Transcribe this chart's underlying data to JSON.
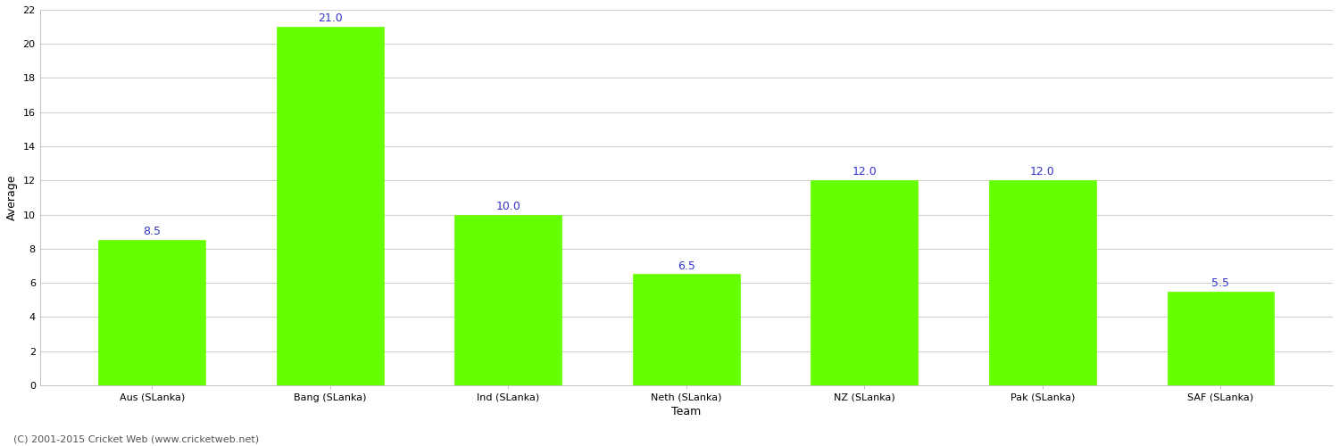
{
  "categories": [
    "Aus (SLanka)",
    "Bang (SLanka)",
    "Ind (SLanka)",
    "Neth (SLanka)",
    "NZ (SLanka)",
    "Pak (SLanka)",
    "SAF (SLanka)"
  ],
  "values": [
    8.5,
    21.0,
    10.0,
    6.5,
    12.0,
    12.0,
    5.5
  ],
  "bar_color": "#66ff00",
  "bar_edgecolor": "#66ff00",
  "label_color": "#3333cc",
  "label_fontsize": 9,
  "ylabel": "Average",
  "xlabel": "Team",
  "ylim": [
    0,
    22
  ],
  "yticks": [
    0,
    2,
    4,
    6,
    8,
    10,
    12,
    14,
    16,
    18,
    20,
    22
  ],
  "background_color": "#ffffff",
  "grid_color": "#d0d0d0",
  "footer": "(C) 2001-2015 Cricket Web (www.cricketweb.net)",
  "axis_label_fontsize": 9,
  "tick_fontsize": 8,
  "footer_fontsize": 8
}
